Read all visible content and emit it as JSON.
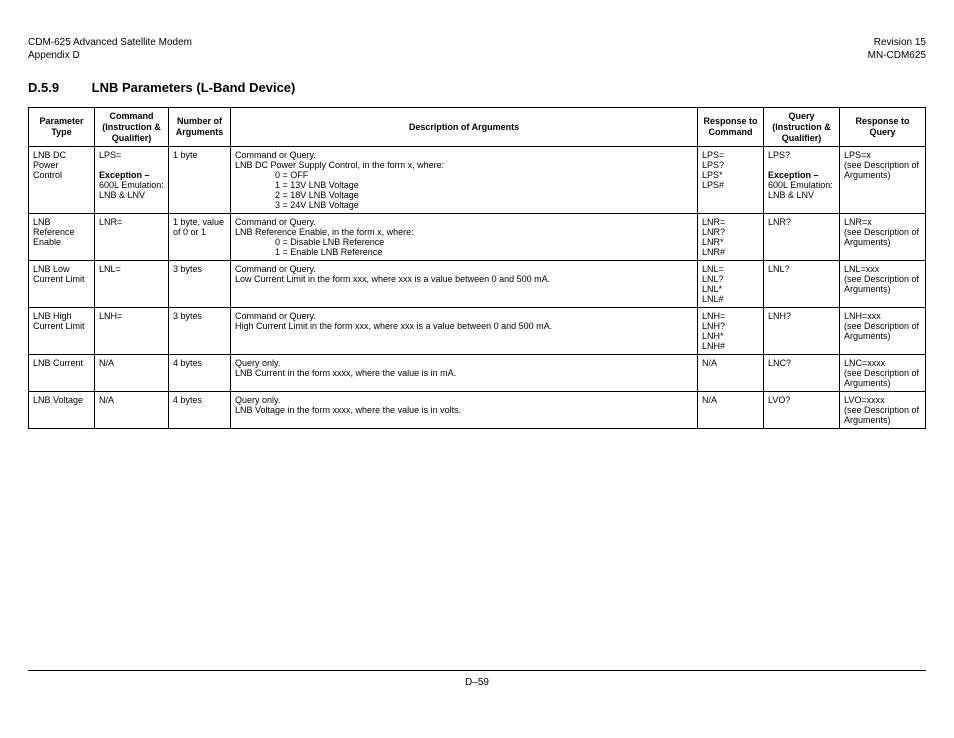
{
  "header": {
    "left_line1": "CDM-625 Advanced Satellite Modem",
    "left_line2": "Appendix D",
    "right_line1": "Revision 15",
    "right_line2": "MN-CDM625"
  },
  "section": {
    "number": "D.5.9",
    "title": "LNB Parameters (L-Band Device)"
  },
  "table": {
    "headers": {
      "c0": "Parameter Type",
      "c1": "Command (Instruction & Qualifier)",
      "c2": "Number of Arguments",
      "c3": "Description of Arguments",
      "c4": "Response to Command",
      "c5": "Query (Instruction & Qualifier)",
      "c6": "Response to Query"
    },
    "rows": [
      {
        "param": "LNB DC Power Control",
        "cmd_main": "LPS=",
        "cmd_exc_label": "Exception –",
        "cmd_exc_text": "600L Emulation: LNB & LNV",
        "nargs": "1 byte",
        "desc_lead": "Command or Query.",
        "desc_body": "LNB DC Power Supply Control, in the form x, where:",
        "desc_lines": [
          "0 = OFF",
          "1 = 13V LNB Voltage",
          "2 = 18V LNB Voltage",
          "3 = 24V LNB Voltage"
        ],
        "resp_cmd": [
          "LPS=",
          "LPS?",
          "LPS*",
          "LPS#"
        ],
        "query_main": "LPS?",
        "query_exc_label": "Exception –",
        "query_exc_text": "600L Emulation: LNB & LNV",
        "resp_q": [
          "LPS=x",
          "(see Description of Arguments)"
        ]
      },
      {
        "param": "LNB Reference Enable",
        "cmd_main": "LNR=",
        "nargs": "1 byte, value of 0 or 1",
        "desc_lead": "Command or Query.",
        "desc_body": "LNB Reference Enable, in the form x, where:",
        "desc_lines": [
          "0 = Disable LNB Reference",
          "1 = Enable LNB Reference"
        ],
        "resp_cmd": [
          "LNR=",
          "LNR?",
          "LNR*",
          "LNR#"
        ],
        "query_main": "LNR?",
        "resp_q": [
          "LNR=x",
          "(see Description of Arguments)"
        ]
      },
      {
        "param": "LNB Low Current Limit",
        "cmd_main": "LNL=",
        "nargs": "3 bytes",
        "desc_lead": "Command or Query.",
        "desc_body": "Low Current Limit in the form xxx, where xxx is a value between 0 and 500 mA.",
        "resp_cmd": [
          "LNL=",
          "LNL?",
          "LNL*",
          "LNL#"
        ],
        "query_main": "LNL?",
        "resp_q": [
          "LNL=xxx",
          "(see Description of Arguments)"
        ]
      },
      {
        "param": "LNB High Current Limit",
        "cmd_main": "LNH=",
        "nargs": "3 bytes",
        "desc_lead": "Command or Query.",
        "desc_body": "High Current Limit in the form xxx, where xxx is a value between 0 and 500 mA.",
        "resp_cmd": [
          "LNH=",
          "LNH?",
          "LNH*",
          "LNH#"
        ],
        "query_main": "LNH?",
        "resp_q": [
          "LNH=xxx",
          "(see Description of Arguments)"
        ]
      },
      {
        "param": "LNB Current",
        "cmd_main": "N/A",
        "nargs": "4 bytes",
        "desc_lead": "Query only.",
        "desc_body": "LNB Current in the form xxxx, where the value is in mA.",
        "resp_cmd": [
          "N/A"
        ],
        "query_main": "LNC?",
        "resp_q": [
          "LNC=xxxx",
          "(see Description of Arguments)"
        ]
      },
      {
        "param": "LNB Voltage",
        "cmd_main": "N/A",
        "nargs": "4 bytes",
        "desc_lead": "Query only.",
        "desc_body": "LNB Voltage in the form xxxx, where the value is in volts.",
        "resp_cmd": [
          "N/A"
        ],
        "query_main": "LVO?",
        "resp_q": [
          "LVO=xxxx",
          "(see Description of Arguments)"
        ]
      }
    ]
  },
  "footer": {
    "page": "D–59"
  }
}
